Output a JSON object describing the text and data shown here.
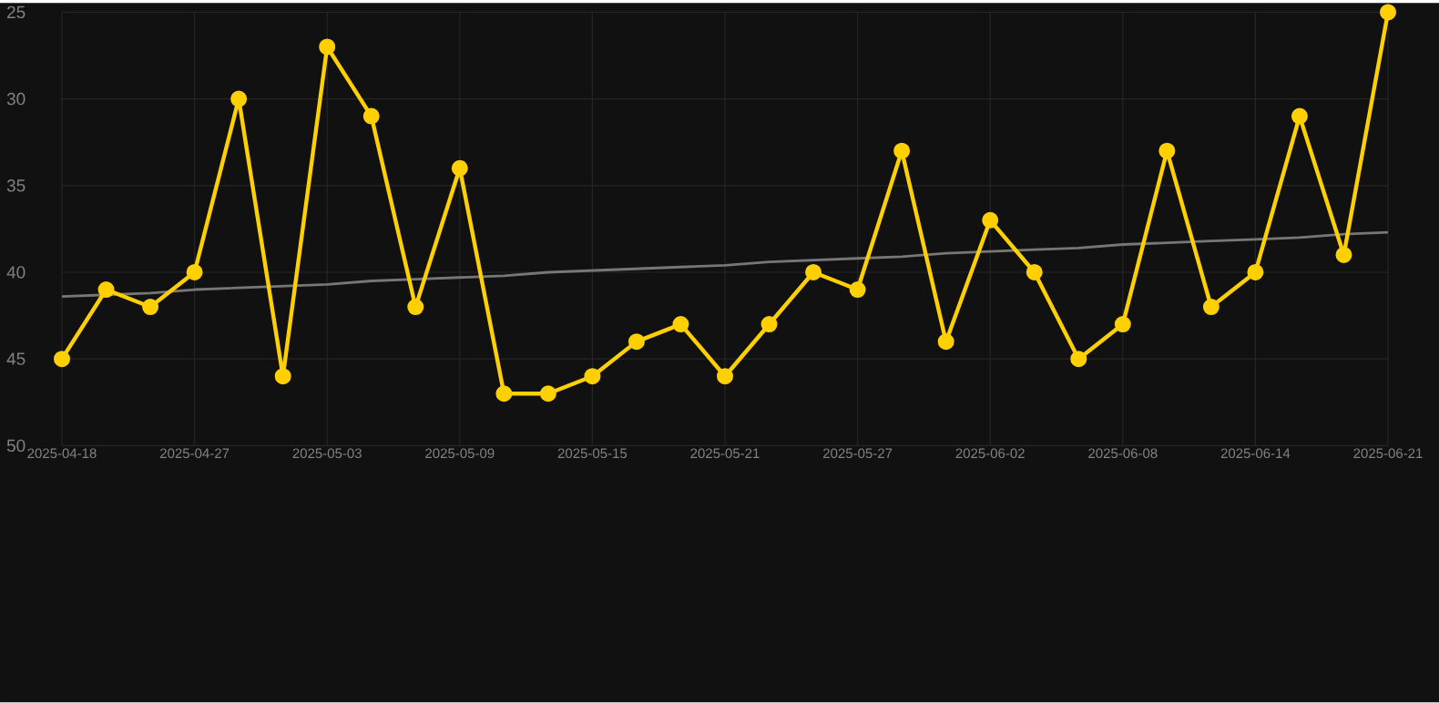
{
  "chart_data": {
    "type": "line",
    "categories": [
      "2025-04-18",
      null,
      null,
      "2025-04-27",
      null,
      null,
      "2025-05-03",
      null,
      null,
      "2025-05-09",
      null,
      null,
      "2025-05-15",
      null,
      null,
      "2025-05-21",
      null,
      null,
      "2025-05-27",
      null,
      null,
      "2025-06-02",
      null,
      null,
      "2025-06-08",
      null,
      null,
      "2025-06-14",
      null,
      null,
      "2025-06-21"
    ],
    "series": [
      {
        "color": "#ffd000",
        "values": [
          45,
          41,
          42,
          40,
          30,
          46,
          27,
          31,
          42,
          34,
          47,
          47,
          46,
          44,
          43,
          46,
          43,
          40,
          41,
          33,
          44,
          37,
          40,
          45,
          43,
          33,
          42,
          40,
          31,
          39,
          25
        ]
      },
      {
        "type": "line",
        "color": "#777777",
        "marker": "none",
        "values": [
          41.4,
          41.3,
          41.2,
          41.0,
          40.9,
          40.8,
          40.7,
          40.5,
          40.4,
          40.3,
          40.2,
          40.0,
          39.9,
          39.8,
          39.7,
          39.6,
          39.4,
          39.3,
          39.2,
          39.1,
          38.9,
          38.8,
          38.7,
          38.6,
          38.4,
          38.3,
          38.2,
          38.1,
          38.0,
          37.8,
          37.7
        ]
      }
    ],
    "ylim": [
      50,
      25
    ],
    "yticks": [
      25,
      30,
      35,
      40,
      45,
      50
    ],
    "grid": true,
    "marker": "circle",
    "line_style": "solid"
  }
}
